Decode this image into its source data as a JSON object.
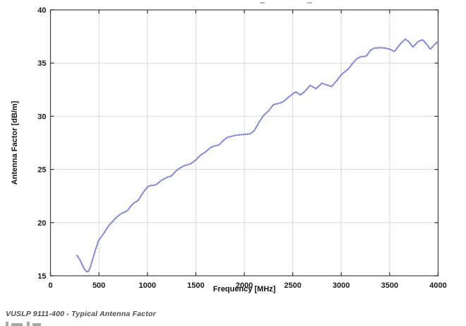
{
  "page": {
    "caption": "VUSLP 9111-400 - Typical Antenna Factor"
  },
  "chart_data": {
    "type": "line",
    "title": "",
    "xlabel": "Frequency [MHz]",
    "ylabel": "Antenna Factor [dB/m]",
    "xlim": [
      0,
      4000
    ],
    "ylim": [
      15,
      40
    ],
    "xticks": [
      0,
      500,
      1000,
      1500,
      2000,
      2500,
      3000,
      3500,
      4000
    ],
    "yticks": [
      15,
      20,
      25,
      30,
      35,
      40
    ],
    "grid": true,
    "legend_position": "none",
    "line_color": "#7477d1",
    "line_style": "dotted",
    "axis_color": "#4d4d4d",
    "grid_color": "#d8d8d8",
    "tick_label_color": "#1a1a1a",
    "series": [
      {
        "name": "Typical Antenna Factor",
        "x": [
          275,
          300,
          320,
          340,
          360,
          380,
          395,
          410,
          430,
          450,
          470,
          500,
          520,
          550,
          580,
          600,
          630,
          660,
          700,
          740,
          780,
          800,
          830,
          860,
          890,
          910,
          940,
          970,
          1000,
          1030,
          1070,
          1100,
          1150,
          1200,
          1250,
          1300,
          1340,
          1380,
          1420,
          1450,
          1500,
          1550,
          1600,
          1650,
          1690,
          1740,
          1780,
          1820,
          1860,
          1900,
          1950,
          2000,
          2060,
          2100,
          2150,
          2200,
          2250,
          2300,
          2350,
          2400,
          2450,
          2500,
          2530,
          2580,
          2630,
          2680,
          2740,
          2800,
          2850,
          2900,
          2950,
          3000,
          3040,
          3080,
          3120,
          3160,
          3200,
          3260,
          3300,
          3340,
          3400,
          3460,
          3500,
          3550,
          3610,
          3660,
          3700,
          3740,
          3790,
          3840,
          3880,
          3920,
          3960,
          4000
        ],
        "y": [
          16.9,
          16.55,
          16.2,
          15.8,
          15.5,
          15.35,
          15.45,
          15.8,
          16.4,
          17.0,
          17.6,
          18.4,
          18.6,
          19.0,
          19.4,
          19.7,
          20.0,
          20.3,
          20.65,
          20.9,
          21.05,
          21.2,
          21.55,
          21.85,
          22.0,
          22.15,
          22.6,
          23.0,
          23.35,
          23.5,
          23.5,
          23.65,
          24.0,
          24.25,
          24.4,
          24.9,
          25.15,
          25.35,
          25.45,
          25.55,
          25.9,
          26.35,
          26.65,
          27.05,
          27.2,
          27.3,
          27.7,
          28.0,
          28.1,
          28.2,
          28.25,
          28.3,
          28.35,
          28.6,
          29.4,
          30.1,
          30.5,
          31.1,
          31.2,
          31.35,
          31.75,
          32.1,
          32.3,
          32.0,
          32.4,
          32.9,
          32.6,
          33.1,
          32.95,
          32.8,
          33.3,
          33.9,
          34.2,
          34.5,
          35.0,
          35.4,
          35.6,
          35.65,
          36.2,
          36.4,
          36.45,
          36.4,
          36.3,
          36.1,
          36.8,
          37.25,
          37.0,
          36.5,
          37.0,
          37.2,
          36.8,
          36.3,
          36.7,
          37.05
        ]
      }
    ]
  }
}
